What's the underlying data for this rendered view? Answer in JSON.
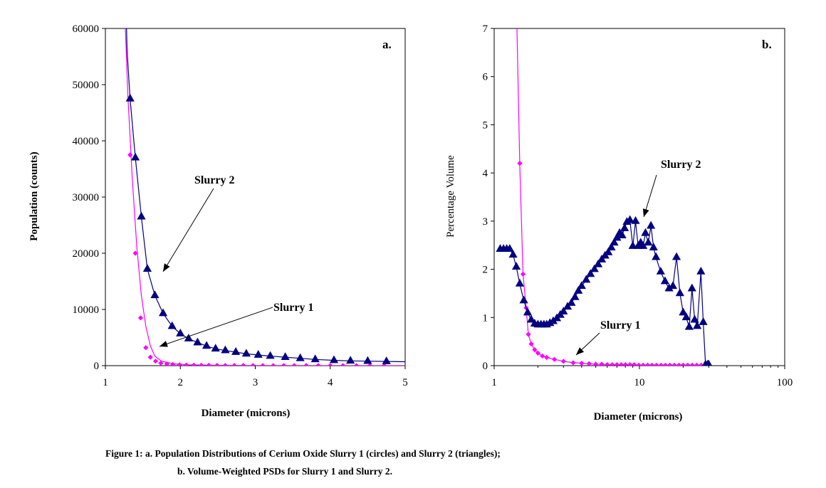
{
  "chart_data": [
    {
      "panel": "a.",
      "type": "line",
      "xlabel": "Diameter (microns)",
      "ylabel": "Population (counts)",
      "xlim": [
        1,
        5
      ],
      "ylim": [
        0,
        60000
      ],
      "xticks": [
        "1",
        "2",
        "3",
        "4",
        "5"
      ],
      "yticks": [
        "0",
        "10000",
        "20000",
        "30000",
        "40000",
        "50000",
        "60000"
      ],
      "grid": false,
      "annotations": [
        {
          "text": "Slurry 2",
          "points_to": [
            1.72,
            15500
          ]
        },
        {
          "text": "Slurry 1",
          "points_to": [
            1.68,
            3500
          ]
        }
      ],
      "series": [
        {
          "marker": "diamond",
          "color": "#ff00ff",
          "line": [
            [
              1.25,
              66000
            ],
            [
              1.3,
              48000
            ],
            [
              1.36,
              33000
            ],
            [
              1.42,
              21000
            ],
            [
              1.48,
              12500
            ],
            [
              1.54,
              7000
            ],
            [
              1.6,
              3500
            ],
            [
              1.66,
              1700
            ],
            [
              1.75,
              800
            ],
            [
              1.9,
              350
            ],
            [
              2.1,
              150
            ],
            [
              2.5,
              60
            ],
            [
              3,
              25
            ],
            [
              5,
              0
            ]
          ],
          "x": [
            1.33,
            1.4,
            1.47,
            1.54,
            1.6,
            1.67,
            1.74,
            1.82,
            1.9,
            1.99,
            2.08,
            2.18,
            2.28,
            2.38,
            2.49,
            2.6,
            2.72,
            2.84,
            2.97,
            3.1,
            3.24,
            3.38,
            3.52,
            3.68,
            3.84,
            4.0,
            4.17,
            4.35,
            4.53,
            4.72
          ],
          "y": [
            37500,
            20000,
            8500,
            3200,
            1500,
            800,
            450,
            300,
            200,
            150,
            110,
            90,
            70,
            60,
            50,
            40,
            35,
            30,
            25,
            22,
            20,
            18,
            16,
            14,
            12,
            10,
            9,
            8,
            7,
            6
          ]
        },
        {
          "marker": "triangle",
          "color": "#000080",
          "line": [
            [
              1.28,
              61000
            ],
            [
              1.29,
              56000
            ],
            [
              1.33,
              47500
            ],
            [
              1.4,
              37000
            ],
            [
              1.48,
              26500
            ],
            [
              1.56,
              17200
            ],
            [
              1.66,
              12500
            ],
            [
              1.77,
              9300
            ],
            [
              1.89,
              7000
            ],
            [
              2.0,
              5700
            ],
            [
              2.11,
              4800
            ],
            [
              2.23,
              4100
            ],
            [
              2.35,
              3500
            ],
            [
              2.47,
              3000
            ],
            [
              2.6,
              2700
            ],
            [
              2.74,
              2400
            ],
            [
              2.88,
              2100
            ],
            [
              3.04,
              1900
            ],
            [
              3.2,
              1700
            ],
            [
              3.4,
              1500
            ],
            [
              3.6,
              1300
            ],
            [
              3.8,
              1100
            ],
            [
              4.05,
              950
            ],
            [
              4.27,
              850
            ],
            [
              4.5,
              800
            ],
            [
              4.75,
              750
            ],
            [
              5.0,
              700
            ]
          ],
          "x": [
            1.33,
            1.4,
            1.48,
            1.56,
            1.66,
            1.77,
            1.89,
            2.0,
            2.11,
            2.23,
            2.35,
            2.47,
            2.6,
            2.74,
            2.88,
            3.04,
            3.2,
            3.4,
            3.6,
            3.8,
            4.05,
            4.27,
            4.5,
            4.75
          ],
          "y": [
            47500,
            37000,
            26500,
            17200,
            12500,
            9300,
            7000,
            5700,
            4800,
            4100,
            3500,
            3000,
            2700,
            2400,
            2100,
            1900,
            1700,
            1500,
            1300,
            1100,
            950,
            850,
            800,
            750
          ]
        }
      ]
    },
    {
      "panel": "b.",
      "type": "line",
      "xscale": "log",
      "xlabel": "Diameter (microns)",
      "ylabel": "Percentage Volume",
      "xlim": [
        1,
        100
      ],
      "ylim": [
        0,
        7
      ],
      "xticks": [
        "1",
        "10",
        "100"
      ],
      "yticks": [
        "0",
        "1",
        "2",
        "3",
        "4",
        "5",
        "6",
        "7"
      ],
      "grid": false,
      "annotations": [
        {
          "text": "Slurry 2",
          "points_to": [
            8.7,
            3.0
          ]
        },
        {
          "text": "Slurry 1",
          "points_to": [
            3.8,
            0.15
          ]
        }
      ],
      "series": [
        {
          "marker": "diamond",
          "color": "#ff00ff",
          "line": [
            [
              1.43,
              7.2
            ],
            [
              1.5,
              4.2
            ],
            [
              1.58,
              1.9
            ],
            [
              1.66,
              1.2
            ],
            [
              1.72,
              0.65
            ],
            [
              1.8,
              0.45
            ],
            [
              1.9,
              0.33
            ],
            [
              2.0,
              0.26
            ],
            [
              2.15,
              0.2
            ],
            [
              2.3,
              0.17
            ],
            [
              2.6,
              0.13
            ],
            [
              3.0,
              0.09
            ],
            [
              3.5,
              0.06
            ],
            [
              4.0,
              0.05
            ],
            [
              5.0,
              0.03
            ],
            [
              7.0,
              0.02
            ],
            [
              10.0,
              0.01
            ],
            [
              20.0,
              0.01
            ],
            [
              28.0,
              0.01
            ]
          ],
          "x": [
            1.5,
            1.58,
            1.66,
            1.72,
            1.8,
            1.9,
            2.0,
            2.15,
            2.3,
            2.6,
            3.0,
            3.5,
            4.0,
            4.5,
            5.0,
            5.5,
            6.0,
            6.5,
            7.0,
            7.5,
            8.0,
            8.6,
            9.2,
            9.9,
            10.6,
            11.4,
            12.2,
            13.1,
            14.1,
            15.1,
            16.2,
            17.4,
            18.7,
            20.0,
            21.5,
            23.1,
            24.8,
            26.6,
            28.5
          ],
          "y": [
            4.2,
            1.9,
            1.2,
            0.65,
            0.45,
            0.33,
            0.26,
            0.2,
            0.17,
            0.13,
            0.09,
            0.06,
            0.05,
            0.04,
            0.03,
            0.03,
            0.02,
            0.02,
            0.02,
            0.02,
            0.02,
            0.02,
            0.02,
            0.01,
            0.01,
            0.01,
            0.01,
            0.01,
            0.01,
            0.01,
            0.01,
            0.01,
            0.01,
            0.01,
            0.01,
            0.01,
            0.01,
            0.01,
            0.01
          ]
        },
        {
          "marker": "triangle",
          "color": "#000080",
          "x": [
            1.1,
            1.16,
            1.22,
            1.28,
            1.35,
            1.42,
            1.5,
            1.6,
            1.7,
            1.8,
            1.9,
            2.0,
            2.1,
            2.2,
            2.3,
            2.42,
            2.55,
            2.7,
            2.85,
            3.0,
            3.2,
            3.4,
            3.6,
            3.8,
            4.0,
            4.3,
            4.6,
            4.9,
            5.2,
            5.5,
            5.8,
            6.1,
            6.4,
            6.7,
            7.0,
            7.3,
            7.6,
            7.9,
            8.2,
            8.6,
            9.0,
            9.4,
            9.8,
            10.2,
            10.6,
            11.0,
            11.5,
            12.0,
            12.5,
            13.0,
            14.0,
            15.0,
            16.0,
            17.0,
            18.0,
            19.0,
            20.0,
            21.0,
            22.0,
            23.0,
            24.0,
            25.0,
            26.5,
            27.5,
            28.5,
            29.5,
            30.0
          ],
          "y": [
            2.42,
            2.42,
            2.42,
            2.42,
            2.3,
            2.05,
            1.7,
            1.35,
            1.1,
            0.95,
            0.87,
            0.85,
            0.85,
            0.85,
            0.85,
            0.88,
            0.92,
            0.98,
            1.05,
            1.12,
            1.22,
            1.3,
            1.42,
            1.55,
            1.65,
            1.78,
            1.9,
            2.0,
            2.1,
            2.2,
            2.28,
            2.35,
            2.45,
            2.55,
            2.65,
            2.75,
            2.7,
            2.85,
            2.98,
            3.02,
            2.48,
            3.0,
            2.48,
            2.55,
            2.48,
            2.75,
            2.55,
            2.9,
            2.45,
            2.25,
            1.95,
            1.75,
            1.6,
            1.65,
            2.25,
            1.5,
            1.1,
            1.0,
            0.8,
            1.6,
            0.95,
            0.82,
            1.95,
            0.9,
            0.02,
            0.02,
            0.02
          ]
        }
      ]
    }
  ],
  "caption": {
    "line1": "Figure 1: a. Population Distributions of Cerium Oxide Slurry 1 (circles) and Slurry 2 (triangles);",
    "line2": "b. Volume-Weighted PSDs for Slurry 1 and Slurry 2."
  }
}
